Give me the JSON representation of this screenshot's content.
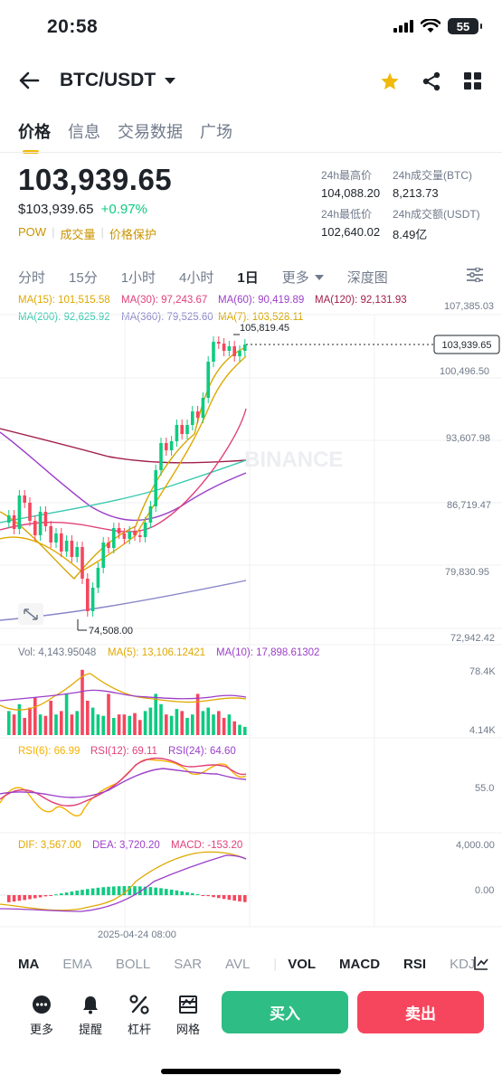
{
  "status": {
    "time": "20:58",
    "battery": "55"
  },
  "header": {
    "pair": "BTC/USDT"
  },
  "tabs": [
    "价格",
    "信息",
    "交易数据",
    "广场"
  ],
  "ticker": {
    "last_price": "103,939.65",
    "usd_price": "$103,939.65",
    "change": "+0.97%",
    "tags": [
      "POW",
      "成交量",
      "价格保护"
    ],
    "high_label": "24h最高价",
    "high": "104,088.20",
    "low_label": "24h最低价",
    "low": "102,640.02",
    "vol_btc_label": "24h成交量(BTC)",
    "vol_btc": "8,213.73",
    "vol_usdt_label": "24h成交额(USDT)",
    "vol_usdt": "8.49亿"
  },
  "intervals": [
    "分时",
    "15分",
    "1小时",
    "4小时",
    "1日",
    "更多",
    "深度图"
  ],
  "ma_legend": {
    "ma15": "MA(15): 101,515.58",
    "ma30": "MA(30): 97,243.67",
    "ma60": "MA(60): 90,419.89",
    "ma120": "MA(120): 92,131.93",
    "ma200": "MA(200): 92,625.92",
    "ma360": "MA(360): 79,525.60",
    "ma7": "MA(7): 103,528.11"
  },
  "price_axis": [
    "107,385.03",
    "100,496.50",
    "93,607.98",
    "86,719.47",
    "79,830.95",
    "72,942.42"
  ],
  "chart_annotations": {
    "high": "105,819.45",
    "low": "74,508.00",
    "current": "103,939.65",
    "watermark": "BINANCE"
  },
  "volume_legend": {
    "vol": "Vol: 4,143.95048",
    "ma5": "MA(5): 13,106.12421",
    "ma10": "MA(10): 17,898.61302",
    "axis_top": "78.4K",
    "axis_bottom": "4.14K"
  },
  "rsi_legend": {
    "rsi6": "RSI(6): 66.99",
    "rsi12": "RSI(12): 69.11",
    "rsi24": "RSI(24): 64.60",
    "axis": "55.0"
  },
  "macd_legend": {
    "dif": "DIF: 3,567.00",
    "dea": "DEA: 3,720.20",
    "macd": "MACD: -153.20",
    "axis_top": "4,000.00",
    "axis_zero": "0.00"
  },
  "time_label": "2025-04-24 08:00",
  "indicators": [
    "MA",
    "EMA",
    "BOLL",
    "SAR",
    "AVL",
    "VOL",
    "MACD",
    "RSI",
    "KDJ"
  ],
  "bottom_actions": [
    "更多",
    "提醒",
    "杠杆",
    "网格"
  ],
  "buy_label": "买入",
  "sell_label": "卖出",
  "colors": {
    "up": "#0ecb81",
    "down": "#f6465d",
    "accent": "#f0b90b"
  }
}
